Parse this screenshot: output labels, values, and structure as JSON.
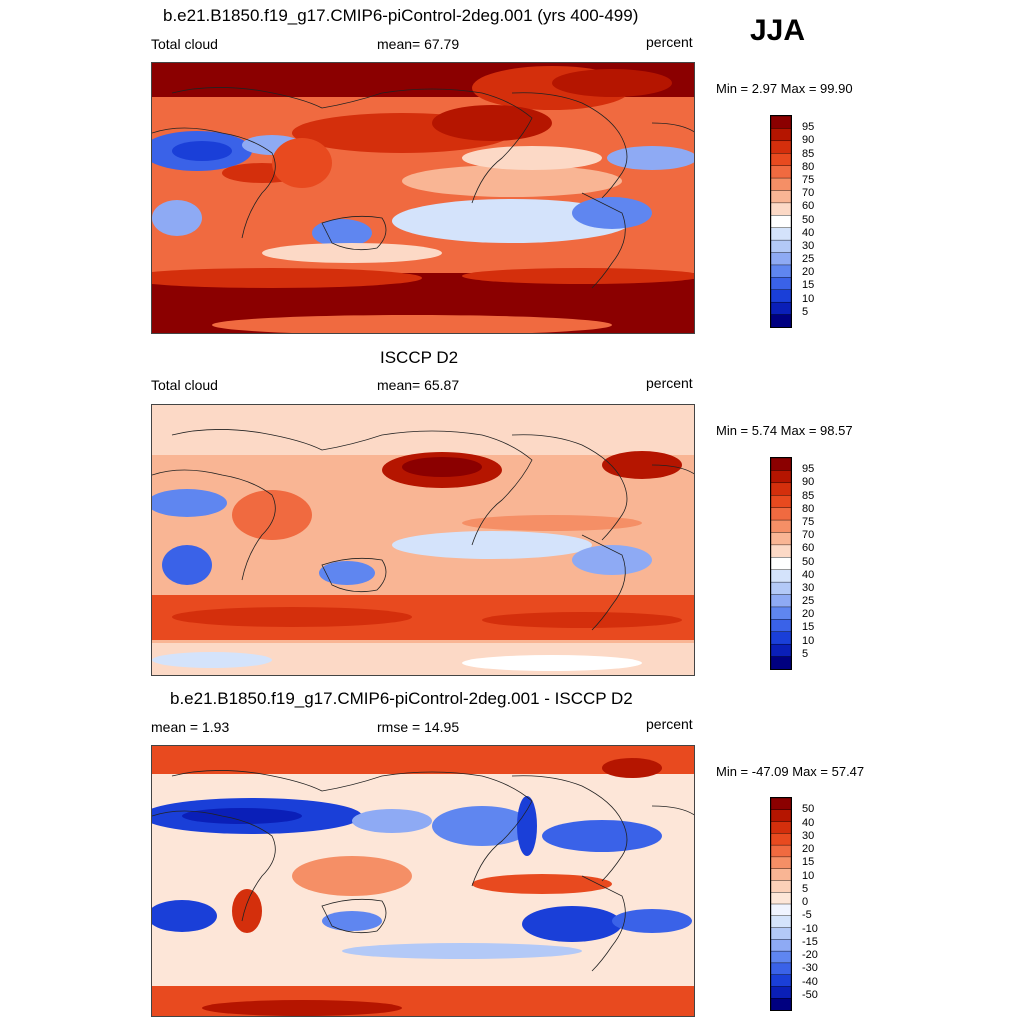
{
  "season": "JJA",
  "colors": {
    "abs_scale": [
      "#000080",
      "#0a1fb8",
      "#1a3fd8",
      "#3a62e8",
      "#5f86f0",
      "#8eaaf4",
      "#b3c9f7",
      "#d4e3fb",
      "#ffffff",
      "#fcd9c6",
      "#f9b594",
      "#f58f66",
      "#f06a40",
      "#e84a1f",
      "#d42f0c",
      "#b51500",
      "#8b0000"
    ],
    "diff_scale": [
      "#000080",
      "#0a1fb8",
      "#1a3fd8",
      "#3a62e8",
      "#5f86f0",
      "#8eaaf4",
      "#b3c9f7",
      "#d4e3fb",
      "#f0f4ff",
      "#fde6d8",
      "#fcd0b8",
      "#f9b594",
      "#f58f66",
      "#f06a40",
      "#e84a1f",
      "#d42f0c",
      "#b51500",
      "#8b0000"
    ]
  },
  "panels": [
    {
      "title": "b.e21.B1850.f19_g17.CMIP6-piControl-2deg.001 (yrs 400-499)",
      "left_label": "Total cloud",
      "center_label": "mean=  67.79",
      "right_label": "percent",
      "minmax": "Min =   2.97 Max =  99.90",
      "levels": [
        "95",
        "90",
        "85",
        "80",
        "75",
        "70",
        "60",
        "50",
        "40",
        "30",
        "25",
        "20",
        "15",
        "10",
        "5"
      ],
      "field_id": "model"
    },
    {
      "title": "ISCCP D2",
      "left_label": "Total cloud",
      "center_label": "mean=  65.87",
      "right_label": "percent",
      "minmax": "Min =   5.74 Max =  98.57",
      "levels": [
        "95",
        "90",
        "85",
        "80",
        "75",
        "70",
        "60",
        "50",
        "40",
        "30",
        "25",
        "20",
        "15",
        "10",
        "5"
      ],
      "field_id": "obs"
    },
    {
      "title": "b.e21.B1850.f19_g17.CMIP6-piControl-2deg.001 - ISCCP D2",
      "left_label": "mean =   1.93",
      "center_label": "rmse =  14.95",
      "right_label": "percent",
      "minmax": "Min = -47.09 Max =  57.47",
      "levels": [
        "50",
        "40",
        "30",
        "20",
        "15",
        "10",
        "5",
        "0",
        "-5",
        "-10",
        "-15",
        "-20",
        "-30",
        "-40",
        "-50"
      ],
      "field_id": "diff"
    }
  ]
}
